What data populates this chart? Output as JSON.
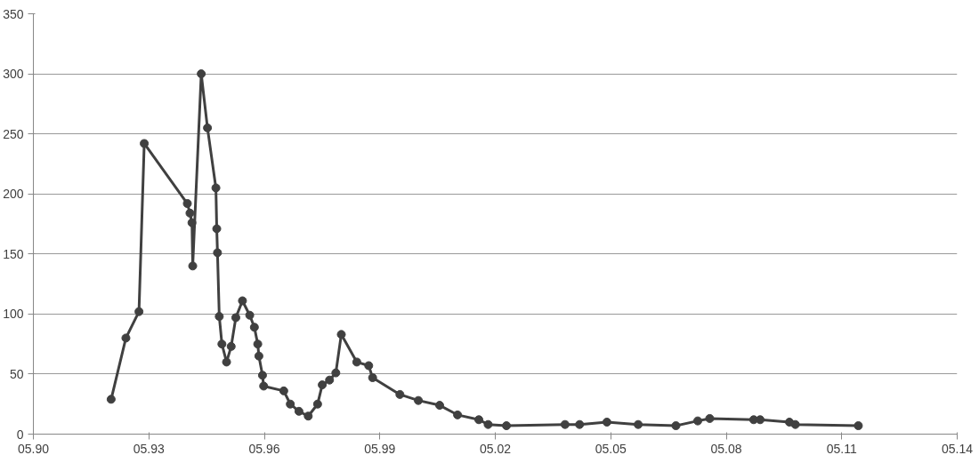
{
  "chart_data": {
    "type": "line",
    "marker": "circle",
    "grid": "y",
    "line_style": "solid",
    "x": [
      "1992-05-08",
      "1992-09-25",
      "1993-01-27",
      "1993-03-18",
      "1994-05-01",
      "1994-05-26",
      "1994-06-14",
      "1994-06-21",
      "1994-09-10",
      "1994-11-08",
      "1995-01-27",
      "1995-02-04",
      "1995-02-11",
      "1995-02-28",
      "1995-03-25",
      "1995-05-08",
      "1995-06-21",
      "1995-08-04",
      "1995-10-06",
      "1995-12-14",
      "1996-01-27",
      "1996-02-28",
      "1996-03-10",
      "1996-04-13",
      "1996-04-24",
      "1996-11-01",
      "1997-01-02",
      "1997-03-25",
      "1997-06-21",
      "1997-09-18",
      "1997-11-01",
      "1998-01-09",
      "1998-03-10",
      "1998-05-01",
      "1998-09-25",
      "1999-01-16",
      "1999-02-22",
      "1999-11-08",
      "2000-05-01",
      "2000-11-19",
      "2001-05-08",
      "2001-11-26",
      "2002-02-22",
      "2002-08-15",
      "2004-02-22",
      "2004-07-09",
      "2005-03-25",
      "2006-01-16",
      "2007-01-09",
      "2007-08-04",
      "2007-11-26",
      "2009-01-16",
      "2009-03-18",
      "2009-12-21",
      "2010-02-15",
      "2011-10-06"
    ],
    "series": [
      {
        "color": "#404040",
        "values": [
          29,
          80,
          102,
          242,
          192,
          184,
          176,
          140,
          300,
          255,
          205,
          171,
          151,
          98,
          75,
          60,
          73,
          97,
          111,
          99,
          89,
          75,
          65,
          49,
          40,
          36,
          25,
          19,
          15,
          25,
          41,
          45,
          51,
          83,
          60,
          57,
          47,
          33,
          28,
          24,
          16,
          12,
          8,
          7,
          8,
          8,
          10,
          8,
          7,
          11,
          13,
          12,
          12,
          10,
          8,
          7
        ]
      }
    ],
    "xlim": [
      "1990-05",
      "2014-05"
    ],
    "xticks": [
      {
        "value": "1990-05",
        "label": "05.90"
      },
      {
        "value": "1993-05",
        "label": "05.93"
      },
      {
        "value": "1996-05",
        "label": "05.96"
      },
      {
        "value": "1999-05",
        "label": "05.99"
      },
      {
        "value": "2002-05",
        "label": "05.02"
      },
      {
        "value": "2005-05",
        "label": "05.05"
      },
      {
        "value": "2008-05",
        "label": "05.08"
      },
      {
        "value": "2011-05",
        "label": "05.11"
      },
      {
        "value": "2014-05",
        "label": "05.14"
      }
    ],
    "ylim": [
      0,
      350
    ],
    "yticks": [
      0,
      50,
      100,
      150,
      200,
      250,
      300,
      350
    ]
  }
}
